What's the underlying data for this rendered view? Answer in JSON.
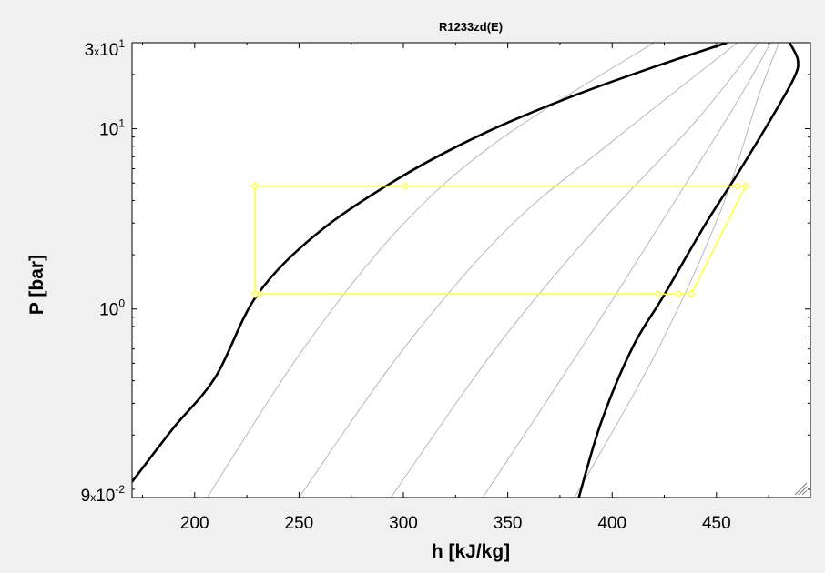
{
  "chart_data": {
    "type": "line",
    "title": "R1233zd(E)",
    "xlabel": "h [kJ/kg]",
    "ylabel": "P [bar]",
    "xlim": [
      170,
      495
    ],
    "ylim": [
      0.09,
      30
    ],
    "y_scale": "log",
    "grid": false,
    "x_ticks": [
      200,
      250,
      300,
      350,
      400,
      450
    ],
    "y_ticks": [
      {
        "value": 30,
        "mantissa": "3",
        "times": "x",
        "base": "10",
        "exp": "1"
      },
      {
        "value": 10,
        "mantissa": "",
        "times": "",
        "base": "10",
        "exp": "1"
      },
      {
        "value": 1,
        "mantissa": "",
        "times": "",
        "base": "10",
        "exp": "0"
      },
      {
        "value": 0.09,
        "mantissa": "9",
        "times": "x",
        "base": "10",
        "exp": "-2"
      }
    ],
    "colors": {
      "saturation": "#000000",
      "isentropes": "#b0b0b0",
      "cycle": "#ffff33",
      "frame": "#000000",
      "background": "#ffffff"
    },
    "saturated_liquid": [
      {
        "h": 170,
        "P": 0.11
      },
      {
        "h": 190,
        "P": 0.22
      },
      {
        "h": 210,
        "P": 0.42
      },
      {
        "h": 230,
        "P": 1.2
      },
      {
        "h": 260,
        "P": 2.7
      },
      {
        "h": 300,
        "P": 5.5
      },
      {
        "h": 340,
        "P": 9.6
      },
      {
        "h": 380,
        "P": 15
      },
      {
        "h": 420,
        "P": 22
      },
      {
        "h": 455,
        "P": 30
      }
    ],
    "saturated_vapor": [
      {
        "h": 384,
        "P": 0.09
      },
      {
        "h": 395,
        "P": 0.24
      },
      {
        "h": 410,
        "P": 0.62
      },
      {
        "h": 425,
        "P": 1.2
      },
      {
        "h": 445,
        "P": 3.0
      },
      {
        "h": 460,
        "P": 5.6
      },
      {
        "h": 475,
        "P": 10.8
      },
      {
        "h": 487,
        "P": 19
      },
      {
        "h": 489,
        "P": 24
      },
      {
        "h": 485,
        "P": 30
      }
    ],
    "isentropes": [
      [
        {
          "h": 206,
          "P": 0.09
        },
        {
          "h": 252,
          "P": 0.6
        },
        {
          "h": 298,
          "P": 2.8
        },
        {
          "h": 345,
          "P": 8.5
        },
        {
          "h": 420,
          "P": 30
        }
      ],
      [
        {
          "h": 250,
          "P": 0.09
        },
        {
          "h": 300,
          "P": 0.6
        },
        {
          "h": 350,
          "P": 2.8
        },
        {
          "h": 400,
          "P": 8.5
        },
        {
          "h": 460,
          "P": 30
        }
      ],
      [
        {
          "h": 294,
          "P": 0.09
        },
        {
          "h": 344,
          "P": 0.6
        },
        {
          "h": 392,
          "P": 2.8
        },
        {
          "h": 440,
          "P": 11
        },
        {
          "h": 470,
          "P": 30
        }
      ],
      [
        {
          "h": 338,
          "P": 0.09
        },
        {
          "h": 385,
          "P": 0.6
        },
        {
          "h": 425,
          "P": 3.2
        },
        {
          "h": 458,
          "P": 13
        },
        {
          "h": 476,
          "P": 30
        }
      ],
      [
        {
          "h": 382,
          "P": 0.09
        },
        {
          "h": 422,
          "P": 0.6
        },
        {
          "h": 452,
          "P": 3.5
        },
        {
          "h": 470,
          "P": 15
        },
        {
          "h": 480,
          "P": 30
        }
      ]
    ],
    "cycle_points": [
      {
        "h": 229,
        "P": 4.8
      },
      {
        "h": 301,
        "P": 4.8
      },
      {
        "h": 460,
        "P": 4.8
      },
      {
        "h": 464,
        "P": 4.8
      },
      {
        "h": 438,
        "P": 1.21
      },
      {
        "h": 432,
        "P": 1.21
      },
      {
        "h": 422,
        "P": 1.21
      },
      {
        "h": 231,
        "P": 1.21
      },
      {
        "h": 229,
        "P": 1.21
      }
    ]
  }
}
